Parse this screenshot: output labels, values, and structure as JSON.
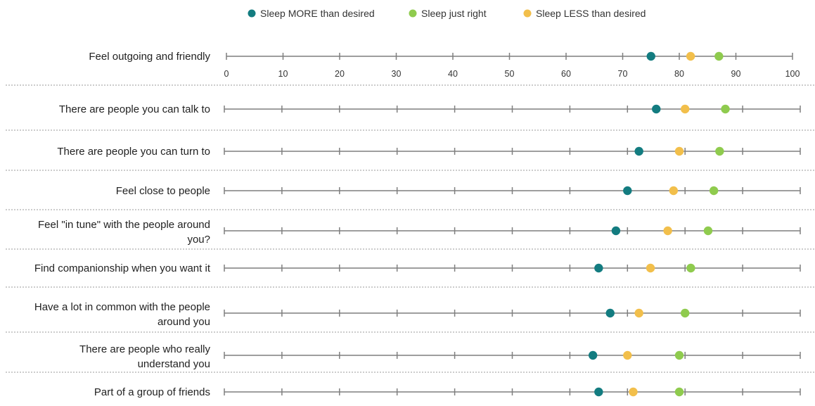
{
  "chart_data": {
    "type": "dot",
    "title": "",
    "xlabel": "",
    "ylabel": "",
    "xlim": [
      0,
      100
    ],
    "ticks": [
      "0",
      "10",
      "20",
      "30",
      "40",
      "50",
      "60",
      "70",
      "80",
      "90",
      "100"
    ],
    "legend_position": "top",
    "grid": false,
    "categories": [
      [
        "Feel outgoing and friendly"
      ],
      [
        "There are people you can talk to"
      ],
      [
        "There are people you can turn to"
      ],
      [
        "Feel close to people"
      ],
      [
        "Feel \"in tune\" with the people around",
        "you?"
      ],
      [
        "Find companionship when you want it"
      ],
      [
        "Have a lot in common with the people",
        "around you"
      ],
      [
        "There are people who really",
        "understand you"
      ],
      [
        "Part of a group of friends"
      ]
    ],
    "series": [
      {
        "name": "Sleep MORE than desired",
        "color": "#137c80",
        "values": [
          75,
          75,
          72,
          70,
          68,
          65,
          67,
          64,
          65
        ]
      },
      {
        "name": "Sleep just right",
        "color": "#8fcb4e",
        "values": [
          87,
          87,
          86,
          85,
          84,
          81,
          80,
          79,
          79
        ]
      },
      {
        "name": "Sleep LESS than desired",
        "color": "#f2bf4b",
        "values": [
          82,
          80,
          79,
          78,
          77,
          74,
          72,
          70,
          71
        ]
      }
    ]
  }
}
